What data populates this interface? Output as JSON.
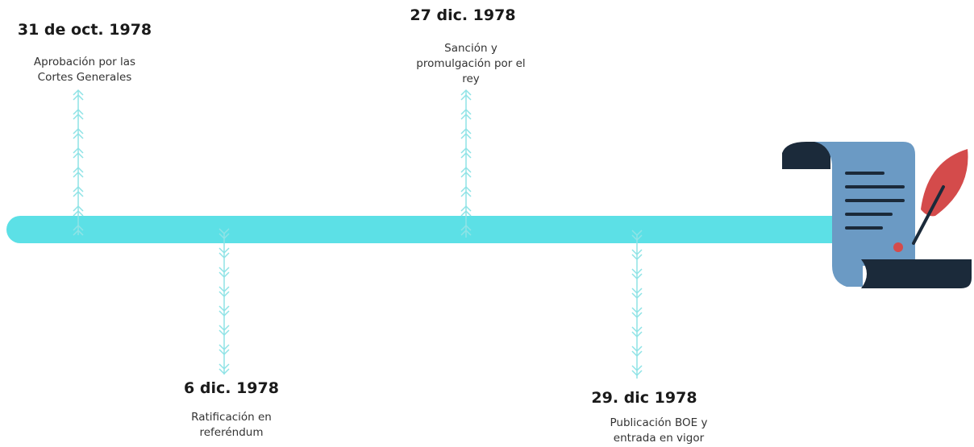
{
  "events": [
    {
      "date": "31 de oct. 1978",
      "description": "Aprobación por las Cortes Generales"
    },
    {
      "date": "6 dic. 1978",
      "description": "Ratificación en referéndum"
    },
    {
      "date": "27 dic. 1978",
      "description": "Sanción y promulgación por el rey"
    },
    {
      "date": "29. dic 1978",
      "description": "Publicación BOE y entrada en vigor"
    }
  ]
}
